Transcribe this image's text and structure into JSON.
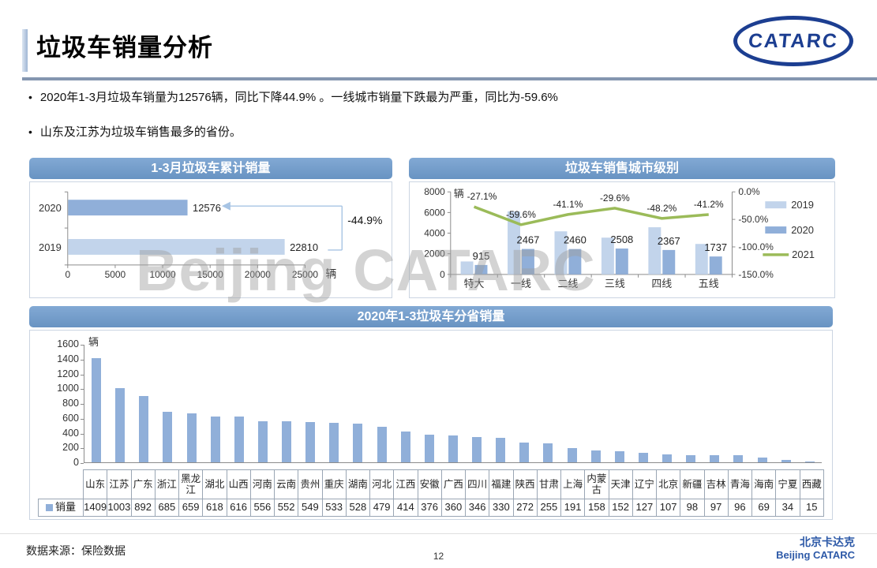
{
  "page": {
    "title": "垃圾车销量分析",
    "logo_text": "CATARC",
    "watermark": "Beijing CATARC",
    "bullets": [
      "2020年1-3月垃圾车销量为12576辆，同比下降44.9% 。一线城市销量下跌最为严重，同比为-59.6%",
      "山东及江苏为垃圾车销售最多的省份。"
    ],
    "footer": {
      "source": "数据来源：保险数据",
      "page_number": "12",
      "brand_cn": "北京卡达克",
      "brand_en": "Beijing CATARC"
    }
  },
  "colors": {
    "header_blue": "#6e9ac8",
    "bar_2019": "#c2d4eb",
    "bar_2020": "#90afd9",
    "line_2021": "#9bbb59",
    "accent_rule": "#8496b0",
    "brand_blue": "#2e5aa8",
    "logo_blue": "#1c3e91",
    "axis_gray": "#8c8c8c",
    "annotation_blue": "#a7c4e4"
  },
  "chart_data": [
    {
      "type": "bar",
      "orientation": "horizontal",
      "title": "1-3月垃圾车累计销量",
      "categories": [
        "2020",
        "2019"
      ],
      "values": [
        12576,
        22810
      ],
      "unit": "辆",
      "xlim": [
        0,
        25000
      ],
      "xticks": [
        0,
        5000,
        10000,
        15000,
        20000,
        25000
      ],
      "annotation": "-44.9%",
      "grid": false
    },
    {
      "type": "bar+line",
      "title": "垃圾车销售城市级别",
      "categories": [
        "特大",
        "一线",
        "二线",
        "三线",
        "四线",
        "五线"
      ],
      "series": [
        {
          "name": "2019",
          "type": "bar",
          "values": [
            1255,
            6106,
            4176,
            3563,
            4570,
            2954
          ]
        },
        {
          "name": "2020",
          "type": "bar",
          "values": [
            915,
            2467,
            2460,
            2508,
            2367,
            1737
          ]
        },
        {
          "name": "2021",
          "type": "line",
          "values_pct": [
            -27.1,
            -59.6,
            -41.1,
            -29.6,
            -48.2,
            -41.2
          ],
          "labels": [
            "-27.1%",
            "-59.6%",
            "-41.1%",
            "-29.6%",
            "-48.2%",
            "-41.2%"
          ]
        }
      ],
      "unit": "辆",
      "ylim_left": [
        0,
        8000
      ],
      "yticks_left": [
        0,
        2000,
        4000,
        6000,
        8000
      ],
      "ylim_right_pct": [
        -150,
        0
      ],
      "yticks_right": [
        "0.0%",
        "-50.0%",
        "-100.0%",
        "-150.0%"
      ],
      "legend": [
        "2019",
        "2020",
        "2021"
      ],
      "legend_position": "right",
      "grid": false
    },
    {
      "type": "bar",
      "title": "2020年1-3垃圾车分省销量",
      "series_label": "销量",
      "unit": "辆",
      "ylim": [
        0,
        1600
      ],
      "yticks": [
        0,
        200,
        400,
        600,
        800,
        1000,
        1200,
        1400,
        1600
      ],
      "categories": [
        "山东",
        "江苏",
        "广东",
        "浙江",
        "黑龙江",
        "湖北",
        "山西",
        "河南",
        "云南",
        "贵州",
        "重庆",
        "湖南",
        "河北",
        "江西",
        "安徽",
        "广西",
        "四川",
        "福建",
        "陕西",
        "甘肃",
        "上海",
        "内蒙古",
        "天津",
        "辽宁",
        "北京",
        "新疆",
        "吉林",
        "青海",
        "海南",
        "宁夏",
        "西藏"
      ],
      "values": [
        1409,
        1003,
        892,
        685,
        659,
        618,
        616,
        556,
        552,
        549,
        533,
        528,
        479,
        414,
        376,
        360,
        346,
        330,
        272,
        255,
        191,
        158,
        152,
        127,
        107,
        98,
        97,
        96,
        69,
        34,
        15
      ],
      "grid": false
    }
  ]
}
